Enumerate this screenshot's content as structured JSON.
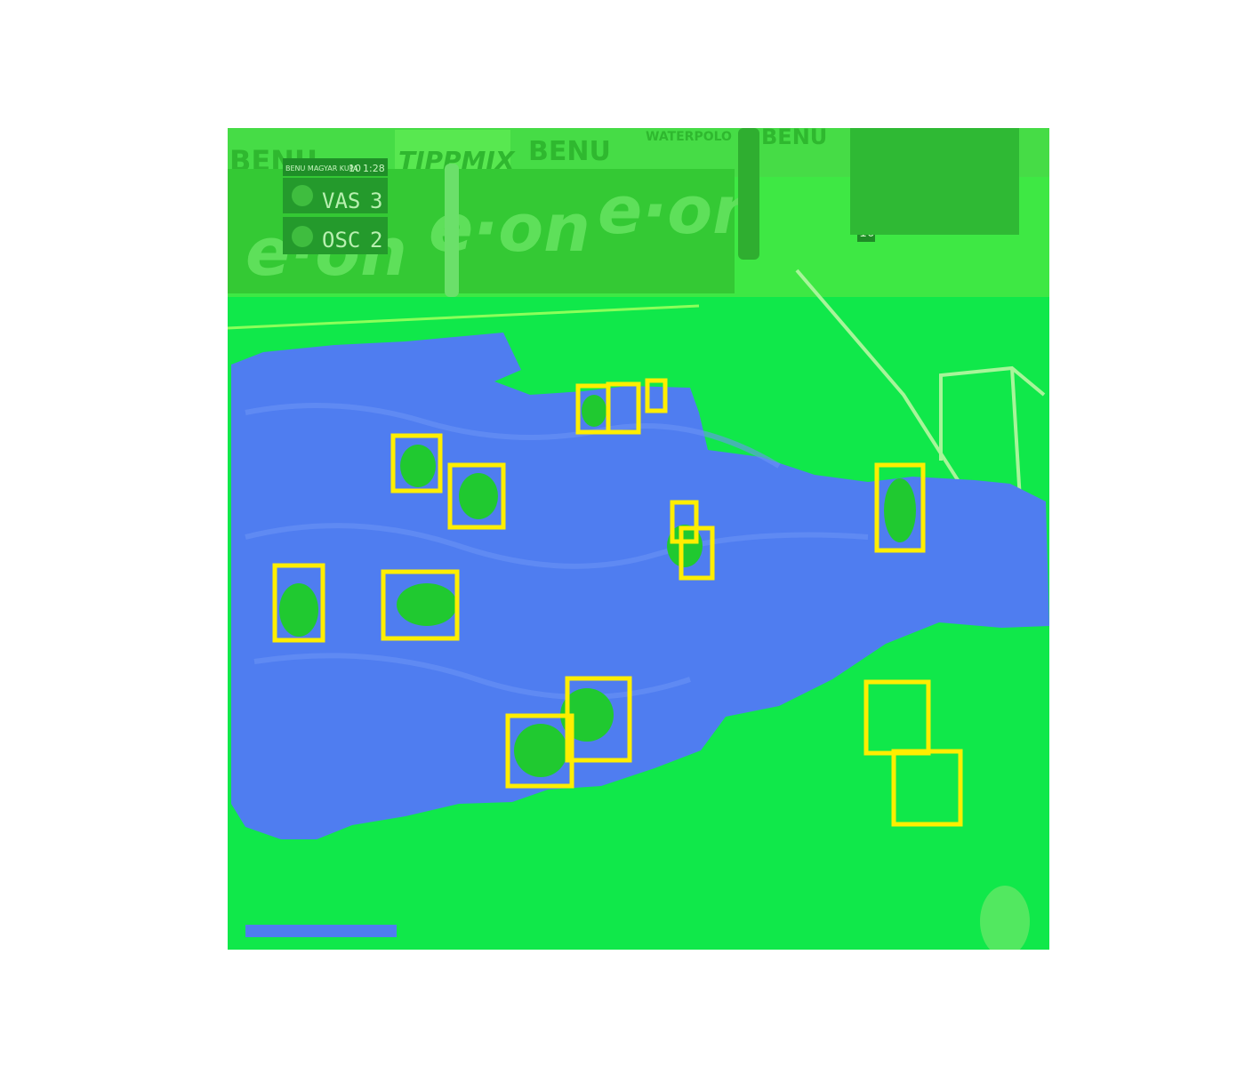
{
  "overlay_colors": {
    "background": "#10e84a",
    "water": "#4f7df0",
    "box": "#ffee00"
  },
  "advertising": {
    "board_left": "BENU",
    "board_center": "TIPPMIX",
    "board_right": "BENU",
    "board_far_right": "WATERPOLO",
    "board_end": "BENU",
    "banner_1": "e·on",
    "banner_2": "e·on",
    "banner_3": "e·on"
  },
  "scoreboard": {
    "competition": "BENU MAGYAR KUPA",
    "period": "10",
    "clock": "1:28",
    "home_team": "VAS",
    "home_score": "3",
    "away_team": "OSC",
    "away_score": "2"
  },
  "shot_clock": {
    "value": "10"
  },
  "detections": {
    "label": "player",
    "count": 16
  }
}
